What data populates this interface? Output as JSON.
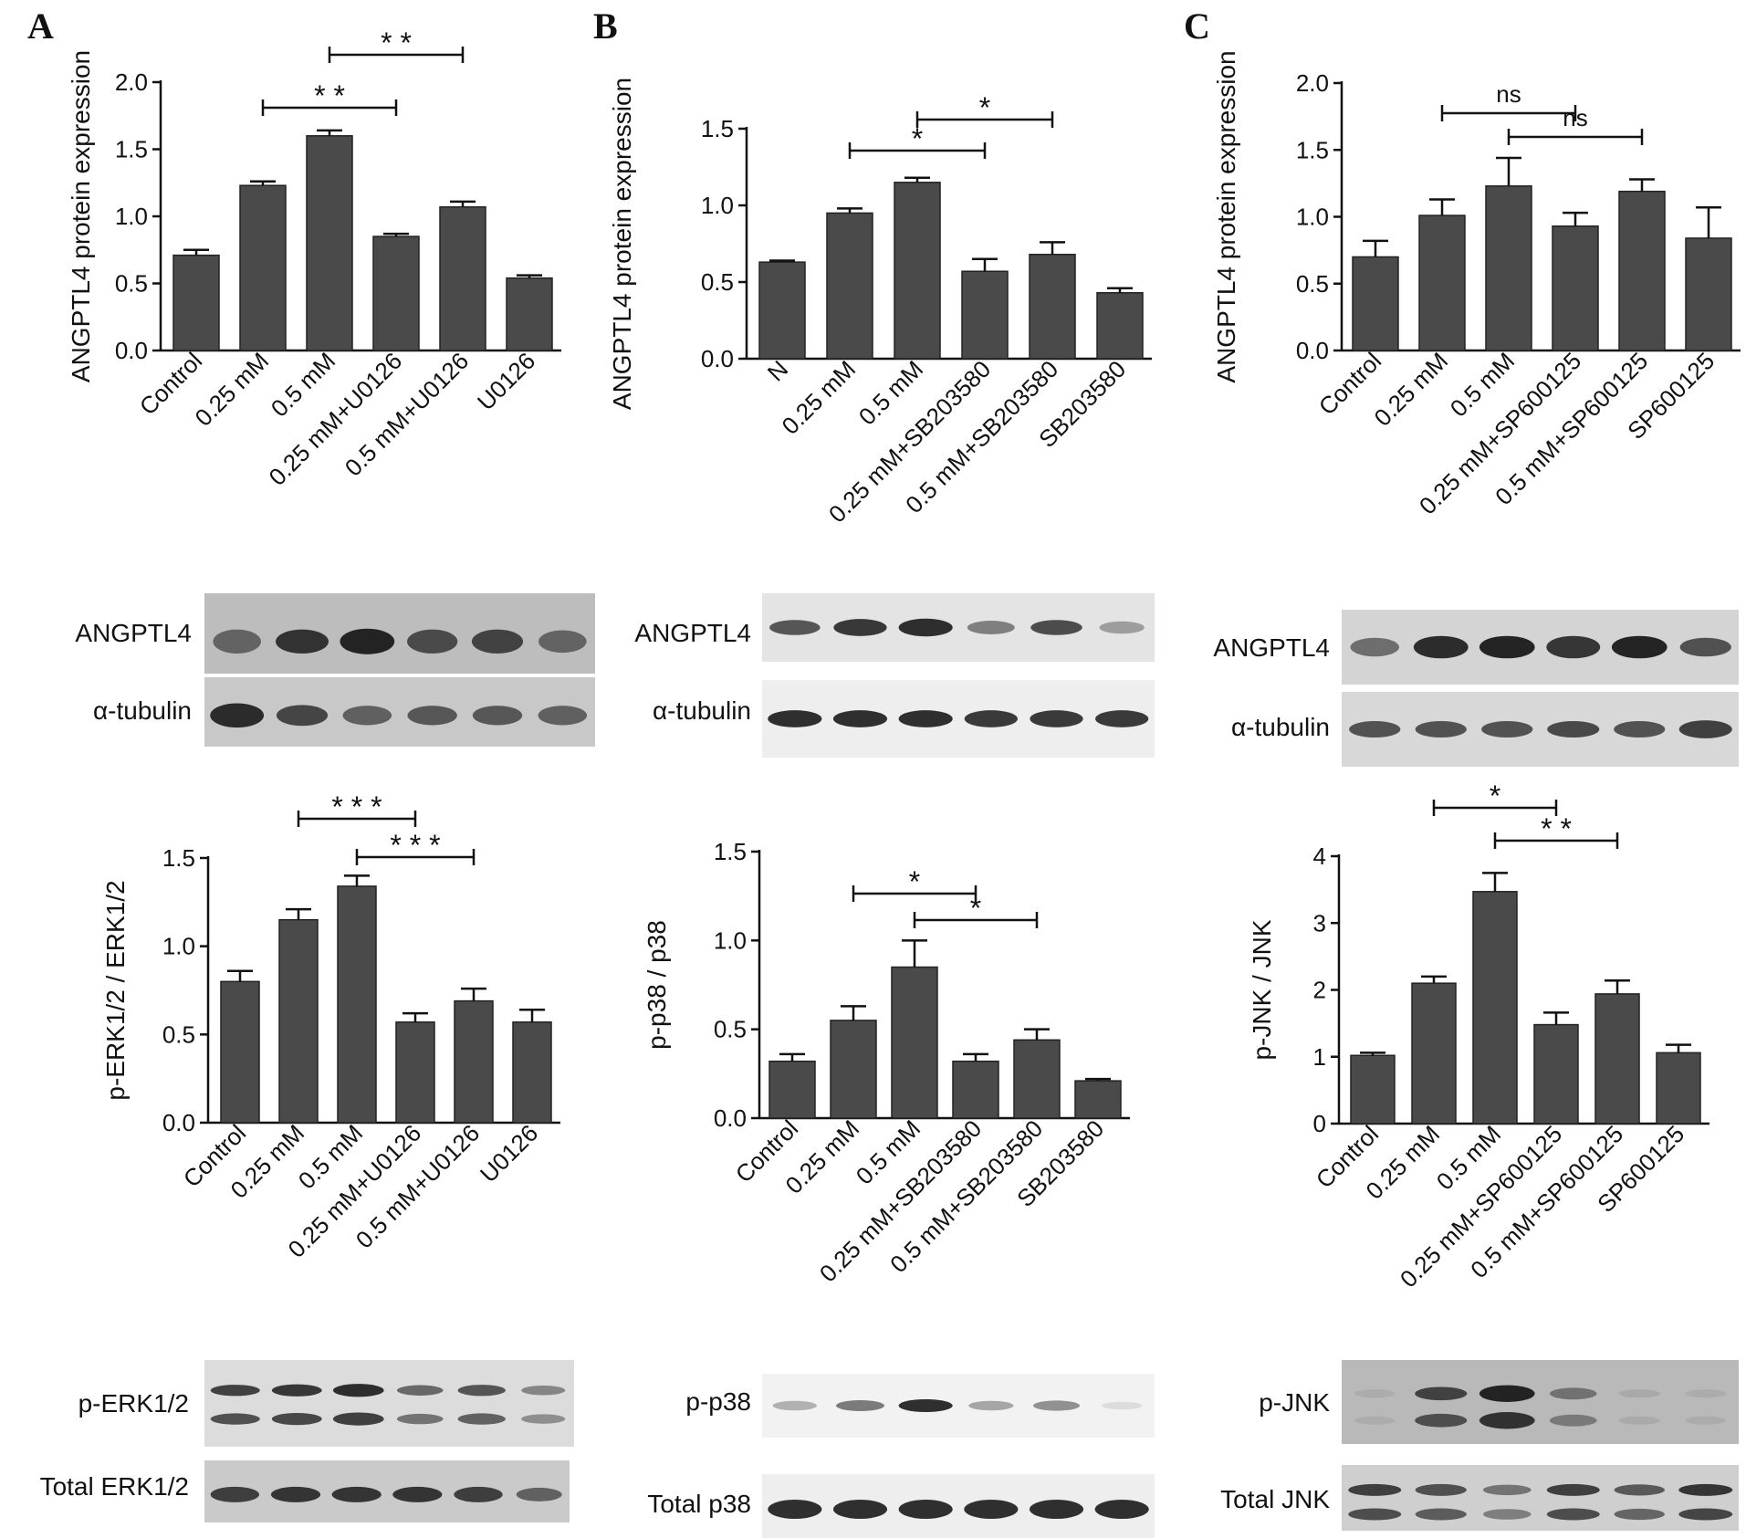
{
  "colors": {
    "bar": "#4a4a4a",
    "axis": "#111111",
    "blot_bg": "#d2d2d2",
    "band": "#1a1a1a"
  },
  "panels": [
    {
      "letter": "A",
      "blot_main": "ANGPTL4",
      "blot_loading": "α-tubulin",
      "blot_phospho": "p-ERK1/2",
      "blot_total": "Total ERK1/2"
    },
    {
      "letter": "B",
      "blot_main": "ANGPTL4",
      "blot_loading": "α-tubulin",
      "blot_phospho": "p-p38",
      "blot_total": "Total p38"
    },
    {
      "letter": "C",
      "blot_main": "ANGPTL4",
      "blot_loading": "α-tubulin",
      "blot_phospho": "p-JNK",
      "blot_total": "Total JNK"
    }
  ],
  "chart_data": [
    {
      "id": "A1",
      "type": "bar",
      "ylabel": "ANGPTL4 protein expression",
      "categories": [
        "Control",
        "0.25 mM",
        "0.5 mM",
        "0.25 mM+U0126",
        "0.5 mM+U0126",
        "U0126"
      ],
      "values": [
        0.71,
        1.23,
        1.6,
        0.85,
        1.07,
        0.54
      ],
      "errors": [
        0.04,
        0.03,
        0.04,
        0.02,
        0.04,
        0.02
      ],
      "ylim": [
        0,
        2.0
      ],
      "ticks": [
        "0.0",
        "0.5",
        "1.0",
        "1.5",
        "2.0"
      ],
      "significance": [
        {
          "from": 1,
          "to": 3,
          "label": "**"
        },
        {
          "from": 2,
          "to": 4,
          "label": "**"
        }
      ]
    },
    {
      "id": "B1",
      "type": "bar",
      "ylabel": "ANGPTL4 protein expression",
      "categories": [
        "N",
        "0.25 mM",
        "0.5 mM",
        "0.25 mM+SB203580",
        "0.5 mM+SB203580",
        "SB203580"
      ],
      "values": [
        0.63,
        0.95,
        1.15,
        0.57,
        0.68,
        0.43
      ],
      "errors": [
        0.01,
        0.03,
        0.03,
        0.08,
        0.08,
        0.03
      ],
      "ylim": [
        0,
        1.5
      ],
      "ticks": [
        "0.0",
        "0.5",
        "1.0",
        "1.5"
      ],
      "significance": [
        {
          "from": 1,
          "to": 3,
          "label": "*"
        },
        {
          "from": 2,
          "to": 4,
          "label": "*"
        }
      ]
    },
    {
      "id": "C1",
      "type": "bar",
      "ylabel": "ANGPTL4 protein expression",
      "categories": [
        "Control",
        "0.25 mM",
        "0.5 mM",
        "0.25 mM+SP600125",
        "0.5 mM+SP600125",
        "SP600125"
      ],
      "values": [
        0.7,
        1.01,
        1.23,
        0.93,
        1.19,
        0.84
      ],
      "errors": [
        0.12,
        0.12,
        0.21,
        0.1,
        0.09,
        0.23
      ],
      "ylim": [
        0,
        2.0
      ],
      "ticks": [
        "0.0",
        "0.5",
        "1.0",
        "1.5",
        "2.0"
      ],
      "significance": [
        {
          "from": 1,
          "to": 3,
          "label": "ns"
        },
        {
          "from": 2,
          "to": 4,
          "label": "ns"
        }
      ]
    },
    {
      "id": "A2",
      "type": "bar",
      "ylabel": "p-ERK1/2 / ERK1/2",
      "categories": [
        "Control",
        "0.25 mM",
        "0.5 mM",
        "0.25 mM+U0126",
        "0.5 mM+U0126",
        "U0126"
      ],
      "values": [
        0.8,
        1.15,
        1.34,
        0.57,
        0.69,
        0.57
      ],
      "errors": [
        0.06,
        0.06,
        0.06,
        0.05,
        0.07,
        0.07
      ],
      "ylim": [
        0,
        1.5
      ],
      "ticks": [
        "0.0",
        "0.5",
        "1.0",
        "1.5"
      ],
      "significance": [
        {
          "from": 1,
          "to": 3,
          "label": "***"
        },
        {
          "from": 2,
          "to": 4,
          "label": "***"
        }
      ]
    },
    {
      "id": "B2",
      "type": "bar",
      "ylabel": "p-p38 / p38",
      "categories": [
        "Control",
        "0.25 mM",
        "0.5 mM",
        "0.25 mM+SB203580",
        "0.5 mM+SB203580",
        "SB203580"
      ],
      "values": [
        0.32,
        0.55,
        0.85,
        0.32,
        0.44,
        0.21
      ],
      "errors": [
        0.04,
        0.08,
        0.15,
        0.04,
        0.06,
        0.01
      ],
      "ylim": [
        0,
        1.5
      ],
      "ticks": [
        "0.0",
        "0.5",
        "1.0",
        "1.5"
      ],
      "significance": [
        {
          "from": 1,
          "to": 3,
          "label": "*"
        },
        {
          "from": 2,
          "to": 4,
          "label": "*"
        }
      ]
    },
    {
      "id": "C2",
      "type": "bar",
      "ylabel": "p-JNK / JNK",
      "categories": [
        "Control",
        "0.25 mM",
        "0.5 mM",
        "0.25 mM+SP600125",
        "0.5 mM+SP600125",
        "SP600125"
      ],
      "values": [
        1.02,
        2.1,
        3.47,
        1.48,
        1.94,
        1.06
      ],
      "errors": [
        0.04,
        0.1,
        0.28,
        0.18,
        0.2,
        0.12
      ],
      "ylim": [
        0,
        4
      ],
      "ticks": [
        "0",
        "1",
        "2",
        "3",
        "4"
      ],
      "significance": [
        {
          "from": 1,
          "to": 3,
          "label": "*"
        },
        {
          "from": 2,
          "to": 4,
          "label": "**"
        }
      ]
    }
  ]
}
